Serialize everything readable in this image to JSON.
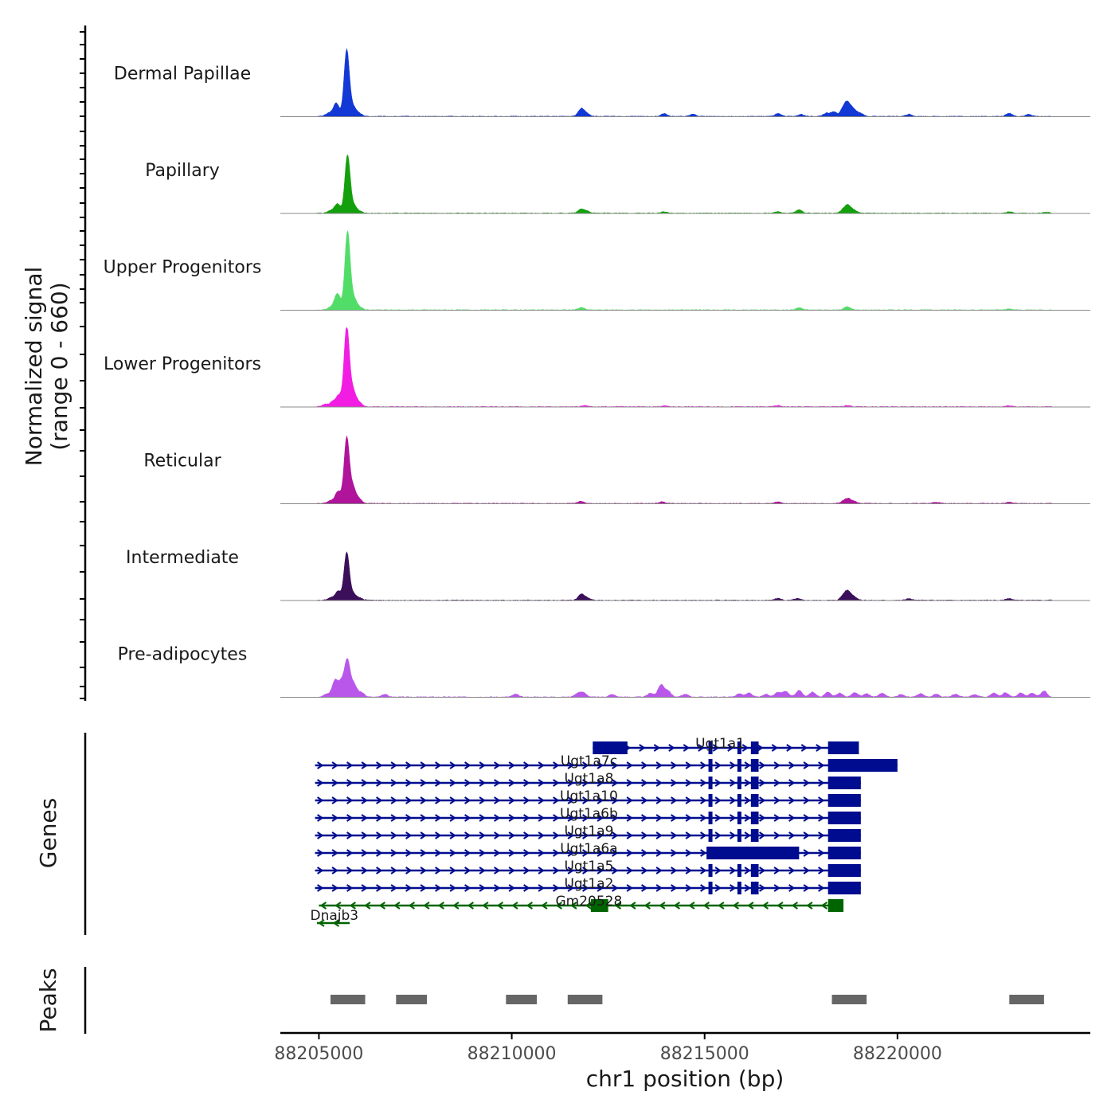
{
  "chart_data": {
    "type": "area",
    "title": "",
    "ylabel_line1": "Normalized signal",
    "ylabel_line2": "(range 0 - 660)",
    "ylim": [
      0,
      660
    ],
    "xlabel": "chr1 position (bp)",
    "xlim": [
      88204000,
      88225000
    ],
    "xticks": [
      88205000,
      88210000,
      88215000,
      88220000
    ],
    "xtick_labels": [
      "88205000",
      "88210000",
      "88215000",
      "88220000"
    ],
    "region_end": 88224000,
    "tracks": [
      {
        "name": "Dermal Papillae",
        "color": "#1239d6",
        "peaks": [
          [
            88205250,
            30
          ],
          [
            88205450,
            120
          ],
          [
            88205720,
            600
          ],
          [
            88205880,
            90
          ],
          [
            88206050,
            25
          ],
          [
            88211800,
            70
          ],
          [
            88211950,
            25
          ],
          [
            88213950,
            25
          ],
          [
            88214700,
            20
          ],
          [
            88216900,
            25
          ],
          [
            88217500,
            18
          ],
          [
            88218150,
            28
          ],
          [
            88218350,
            40
          ],
          [
            88218600,
            70
          ],
          [
            88218720,
            110
          ],
          [
            88218880,
            55
          ],
          [
            88219050,
            25
          ],
          [
            88220300,
            20
          ],
          [
            88222900,
            28
          ],
          [
            88223400,
            18
          ]
        ]
      },
      {
        "name": "Papillary",
        "color": "#13a00c",
        "peaks": [
          [
            88205300,
            20
          ],
          [
            88205480,
            85
          ],
          [
            88205740,
            520
          ],
          [
            88205890,
            70
          ],
          [
            88206050,
            18
          ],
          [
            88211800,
            35
          ],
          [
            88211950,
            18
          ],
          [
            88213950,
            12
          ],
          [
            88216900,
            14
          ],
          [
            88217450,
            30
          ],
          [
            88218600,
            30
          ],
          [
            88218720,
            65
          ],
          [
            88218880,
            25
          ],
          [
            88222900,
            12
          ],
          [
            88223850,
            10
          ]
        ]
      },
      {
        "name": "Upper Progenitors",
        "color": "#52dd68",
        "peaks": [
          [
            88205300,
            22
          ],
          [
            88205480,
            150
          ],
          [
            88205740,
            700
          ],
          [
            88205890,
            110
          ],
          [
            88206050,
            25
          ],
          [
            88211800,
            22
          ],
          [
            88217450,
            20
          ],
          [
            88218700,
            30
          ],
          [
            88222900,
            8
          ]
        ]
      },
      {
        "name": "Lower Progenitors",
        "color": "#f21de3",
        "peaks": [
          [
            88205150,
            20
          ],
          [
            88205350,
            40
          ],
          [
            88205520,
            100
          ],
          [
            88205720,
            720
          ],
          [
            88205880,
            150
          ],
          [
            88206050,
            35
          ],
          [
            88211900,
            10
          ],
          [
            88213950,
            8
          ],
          [
            88216900,
            10
          ],
          [
            88218700,
            12
          ],
          [
            88222900,
            10
          ]
        ]
      },
      {
        "name": "Reticular",
        "color": "#b0149b",
        "peaks": [
          [
            88205300,
            25
          ],
          [
            88205500,
            110
          ],
          [
            88205720,
            590
          ],
          [
            88205880,
            150
          ],
          [
            88206050,
            35
          ],
          [
            88211800,
            20
          ],
          [
            88213900,
            16
          ],
          [
            88216900,
            14
          ],
          [
            88218600,
            18
          ],
          [
            88218720,
            40
          ],
          [
            88218880,
            18
          ],
          [
            88221000,
            12
          ],
          [
            88222900,
            12
          ]
        ]
      },
      {
        "name": "Intermediate",
        "color": "#3b0f5a",
        "peaks": [
          [
            88205300,
            22
          ],
          [
            88205500,
            80
          ],
          [
            88205720,
            430
          ],
          [
            88205880,
            60
          ],
          [
            88206050,
            22
          ],
          [
            88211800,
            55
          ],
          [
            88211950,
            20
          ],
          [
            88216900,
            18
          ],
          [
            88217400,
            15
          ],
          [
            88218600,
            40
          ],
          [
            88218720,
            75
          ],
          [
            88218880,
            30
          ],
          [
            88220300,
            14
          ],
          [
            88222900,
            14
          ]
        ]
      },
      {
        "name": "Pre-adipocytes",
        "color": "#b857ea",
        "peaks": [
          [
            88205200,
            25
          ],
          [
            88205420,
            150
          ],
          [
            88205600,
            140
          ],
          [
            88205740,
            310
          ],
          [
            88205900,
            120
          ],
          [
            88206100,
            40
          ],
          [
            88206700,
            25
          ],
          [
            88210100,
            25
          ],
          [
            88211700,
            30
          ],
          [
            88211850,
            40
          ],
          [
            88212600,
            22
          ],
          [
            88213600,
            35
          ],
          [
            88213870,
            110
          ],
          [
            88214050,
            55
          ],
          [
            88214500,
            25
          ],
          [
            88215900,
            30
          ],
          [
            88216150,
            35
          ],
          [
            88216600,
            25
          ],
          [
            88216900,
            40
          ],
          [
            88217100,
            50
          ],
          [
            88217450,
            60
          ],
          [
            88217800,
            45
          ],
          [
            88218200,
            45
          ],
          [
            88218500,
            35
          ],
          [
            88218900,
            40
          ],
          [
            88219200,
            30
          ],
          [
            88219600,
            35
          ],
          [
            88220100,
            25
          ],
          [
            88220600,
            30
          ],
          [
            88221000,
            28
          ],
          [
            88221500,
            25
          ],
          [
            88222000,
            22
          ],
          [
            88222500,
            35
          ],
          [
            88222800,
            40
          ],
          [
            88223200,
            38
          ],
          [
            88223500,
            35
          ],
          [
            88223800,
            55
          ]
        ]
      }
    ],
    "genes": [
      {
        "name": "Ugt1a1",
        "strand": "+",
        "color": "#000c8f",
        "start": 88212100,
        "end": 88218800,
        "exons": [
          [
            88212100,
            88213000
          ],
          [
            88215100,
            88215200
          ],
          [
            88215850,
            88215950
          ],
          [
            88216200,
            88216400
          ],
          [
            88218200,
            88219000
          ]
        ]
      },
      {
        "name": "Ugt1a7c",
        "strand": "+",
        "color": "#000c8f",
        "start": 88204900,
        "end": 88220000,
        "exons": [
          [
            88215100,
            88215200
          ],
          [
            88215850,
            88215950
          ],
          [
            88216200,
            88216400
          ],
          [
            88218200,
            88220000
          ]
        ]
      },
      {
        "name": "Ugt1a8",
        "strand": "+",
        "color": "#000c8f",
        "start": 88204900,
        "end": 88219050,
        "exons": [
          [
            88215100,
            88215200
          ],
          [
            88215850,
            88215950
          ],
          [
            88216200,
            88216400
          ],
          [
            88218200,
            88219050
          ]
        ]
      },
      {
        "name": "Ugt1a10",
        "strand": "+",
        "color": "#000c8f",
        "start": 88204900,
        "end": 88219050,
        "exons": [
          [
            88215100,
            88215200
          ],
          [
            88215850,
            88215950
          ],
          [
            88216200,
            88216400
          ],
          [
            88218200,
            88219050
          ]
        ]
      },
      {
        "name": "Ugt1a6b",
        "strand": "+",
        "color": "#000c8f",
        "start": 88204900,
        "end": 88219050,
        "exons": [
          [
            88215100,
            88215200
          ],
          [
            88215850,
            88215950
          ],
          [
            88216200,
            88216400
          ],
          [
            88218200,
            88219050
          ]
        ]
      },
      {
        "name": "Ugt1a9",
        "strand": "+",
        "color": "#000c8f",
        "start": 88204900,
        "end": 88219050,
        "exons": [
          [
            88215100,
            88215200
          ],
          [
            88215850,
            88215950
          ],
          [
            88216200,
            88216400
          ],
          [
            88218200,
            88219050
          ]
        ]
      },
      {
        "name": "Ugt1a6a",
        "strand": "+",
        "color": "#000c8f",
        "start": 88204900,
        "end": 88219050,
        "exons": [
          [
            88215050,
            88217450
          ],
          [
            88218200,
            88219050
          ]
        ]
      },
      {
        "name": "Ugt1a5",
        "strand": "+",
        "color": "#000c8f",
        "start": 88204900,
        "end": 88219050,
        "exons": [
          [
            88215100,
            88215200
          ],
          [
            88215850,
            88215950
          ],
          [
            88216200,
            88216400
          ],
          [
            88218200,
            88219050
          ]
        ]
      },
      {
        "name": "Ugt1a2",
        "strand": "+",
        "color": "#000c8f",
        "start": 88204900,
        "end": 88219050,
        "exons": [
          [
            88215100,
            88215200
          ],
          [
            88215850,
            88215950
          ],
          [
            88216200,
            88216400
          ],
          [
            88218200,
            88219050
          ]
        ]
      },
      {
        "name": "Gm20528",
        "strand": "-",
        "color": "#006400",
        "start": 88205000,
        "end": 88218600,
        "exons": [
          [
            88212050,
            88212500
          ],
          [
            88218200,
            88218600
          ]
        ]
      },
      {
        "name": "Dnajb3",
        "strand": "-",
        "color": "#006400",
        "start": 88204950,
        "end": 88205800,
        "exons": []
      }
    ],
    "peaks_track": {
      "label": "Peaks",
      "color": "#666666",
      "regions": [
        [
          88205300,
          88206200
        ],
        [
          88207000,
          88207800
        ],
        [
          88209850,
          88210650
        ],
        [
          88211450,
          88212350
        ],
        [
          88218300,
          88219200
        ],
        [
          88222900,
          88223800
        ]
      ]
    },
    "genes_label": "Genes"
  }
}
